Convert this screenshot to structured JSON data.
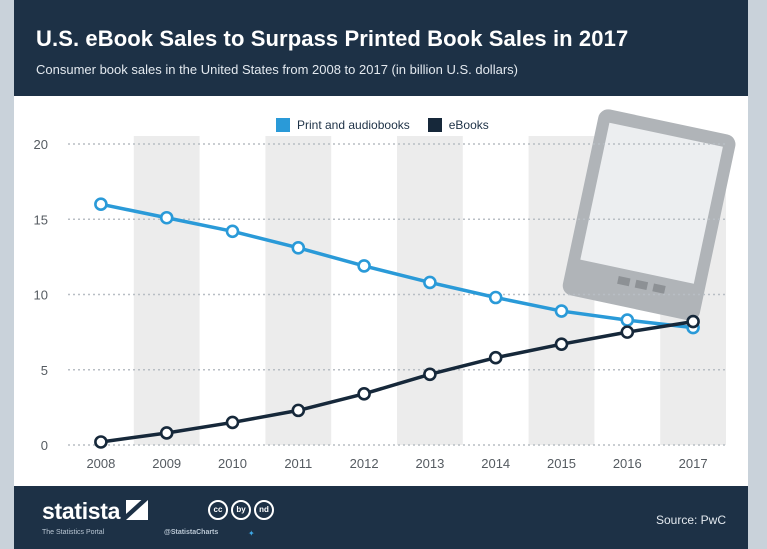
{
  "header": {
    "title": "U.S. eBook Sales to Surpass Printed Book Sales in 2017",
    "subtitle": "Consumer book sales in the United States from 2008 to 2017 (in billion U.S. dollars)"
  },
  "footer": {
    "brand": "statista",
    "tagline": "The Statistics Portal",
    "handle": "@StatistaCharts",
    "source": "Source: PwC",
    "license_icons": [
      "cc",
      "by",
      "nd"
    ]
  },
  "colors": {
    "print": "#2a9ad8",
    "ebooks": "#16283a",
    "header_bg": "#1d3146",
    "band": "#ececec"
  },
  "chart_data": {
    "type": "line",
    "x": [
      "2008",
      "2009",
      "2010",
      "2011",
      "2012",
      "2013",
      "2014",
      "2015",
      "2016",
      "2017"
    ],
    "series": [
      {
        "name": "Print and audiobooks",
        "values": [
          16.0,
          15.1,
          14.2,
          13.1,
          11.9,
          10.8,
          9.8,
          8.9,
          8.3,
          7.8
        ]
      },
      {
        "name": "eBooks",
        "values": [
          0.2,
          0.8,
          1.5,
          2.3,
          3.4,
          4.7,
          5.8,
          6.7,
          7.5,
          8.2
        ]
      }
    ],
    "yticks": [
      0,
      5,
      10,
      15,
      20
    ],
    "ylim": [
      0,
      20
    ],
    "legend": "top-center",
    "grid": true,
    "decoration_icon": "tablet-icon"
  }
}
